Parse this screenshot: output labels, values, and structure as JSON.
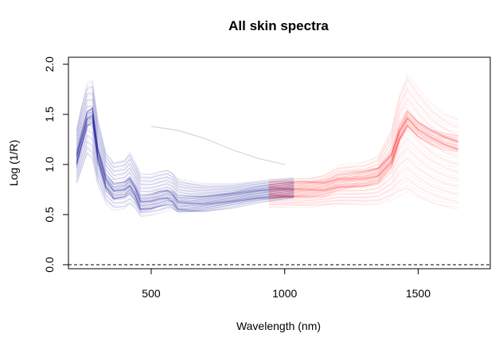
{
  "chart_data": {
    "type": "line",
    "title": "All skin spectra",
    "xlabel": "Wavelength (nm)",
    "ylabel": "Log (1/R)",
    "xlim": [
      190,
      1770
    ],
    "ylim": [
      -0.04,
      2.07
    ],
    "xticks": [
      500,
      1000,
      1500
    ],
    "yticks": [
      0.0,
      0.5,
      1.0,
      1.5,
      2.0
    ],
    "ytick_labels": [
      "0.0",
      "0.5",
      "1.0",
      "1.5",
      "2.0"
    ],
    "reference_line": {
      "y": 0.0,
      "style": "dashed"
    },
    "grid": false,
    "series": [
      {
        "color": "#00008b",
        "x": [
          220,
          240,
          260,
          280,
          300,
          330,
          360,
          400,
          420,
          440,
          460,
          500,
          530,
          560,
          580,
          600,
          650,
          700,
          800,
          900,
          1000,
          1035
        ],
        "y_mean": [
          1.05,
          1.25,
          1.45,
          1.5,
          1.1,
          0.82,
          0.72,
          0.75,
          0.8,
          0.72,
          0.6,
          0.62,
          0.66,
          0.68,
          0.66,
          0.6,
          0.6,
          0.61,
          0.65,
          0.7,
          0.73,
          0.74
        ],
        "y_low": [
          0.8,
          0.95,
          1.1,
          1.05,
          0.8,
          0.62,
          0.55,
          0.56,
          0.6,
          0.56,
          0.48,
          0.5,
          0.52,
          0.55,
          0.55,
          0.52,
          0.53,
          0.55,
          0.6,
          0.64,
          0.66,
          0.67
        ],
        "y_high": [
          1.35,
          1.6,
          1.8,
          1.83,
          1.45,
          1.12,
          1.02,
          1.05,
          1.12,
          1.02,
          0.9,
          0.9,
          0.93,
          0.95,
          0.92,
          0.85,
          0.82,
          0.8,
          0.8,
          0.83,
          0.86,
          0.87
        ],
        "outlier": {
          "x": [
            500,
            600,
            700,
            800,
            900,
            1000
          ],
          "y": [
            1.38,
            1.34,
            1.26,
            1.15,
            1.06,
            1.0
          ]
        }
      },
      {
        "color": "#ff0000",
        "x": [
          940,
          1000,
          1050,
          1100,
          1150,
          1200,
          1250,
          1300,
          1350,
          1400,
          1430,
          1460,
          1500,
          1550,
          1600,
          1650
        ],
        "y_mean": [
          0.74,
          0.74,
          0.75,
          0.76,
          0.77,
          0.82,
          0.84,
          0.86,
          0.9,
          1.05,
          1.3,
          1.45,
          1.35,
          1.28,
          1.23,
          1.2
        ],
        "y_low": [
          0.58,
          0.58,
          0.58,
          0.58,
          0.59,
          0.6,
          0.6,
          0.6,
          0.61,
          0.65,
          0.7,
          0.72,
          0.66,
          0.61,
          0.58,
          0.56
        ],
        "y_high": [
          0.85,
          0.85,
          0.86,
          0.87,
          0.9,
          0.98,
          1.0,
          1.02,
          1.08,
          1.35,
          1.7,
          1.9,
          1.75,
          1.6,
          1.5,
          1.45
        ]
      }
    ]
  }
}
